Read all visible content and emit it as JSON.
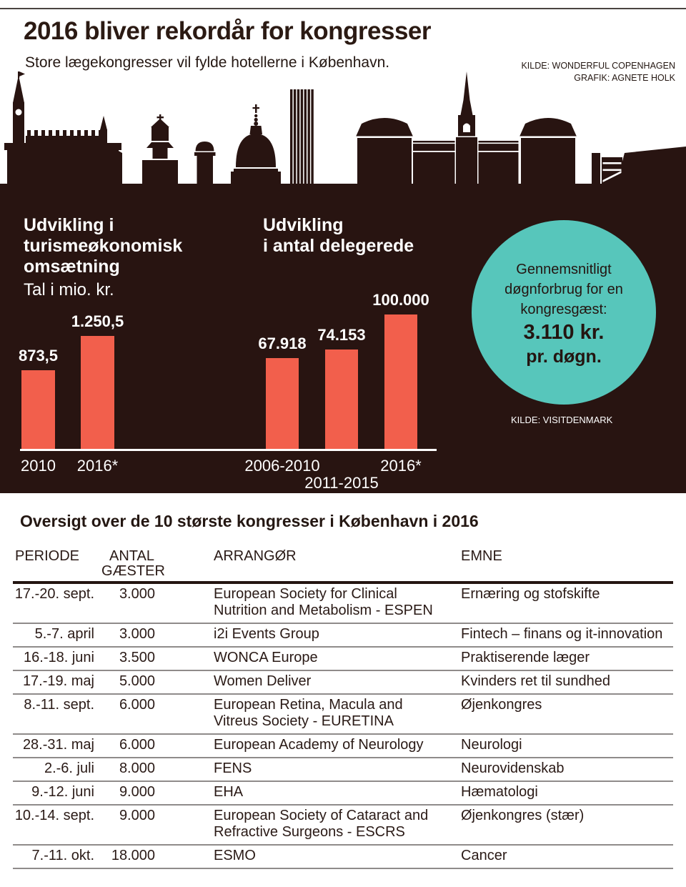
{
  "header": {
    "title": "2016 bliver rekordår for kongresser",
    "subtitle": "Store lægekongresser vil fylde hotellerne i København.",
    "credits": [
      "KILDE: WONDERFUL COPENHAGEN",
      "GRAFIK: AGNETE HOLK"
    ]
  },
  "colors": {
    "panel_bg": "#281411",
    "bar": "#f25f4c",
    "teal_circle": "#57c6bb",
    "title_ink": "#2b1a13",
    "table_rule_gray": "#8f8b8a",
    "table_rule_dark": "#241511",
    "white": "#ffffff"
  },
  "panel": {
    "circle": {
      "line1": "Gennemsnitligt",
      "line2": "døgnforbrug for en",
      "line3": "kongresgæst:",
      "amount": "3.110 kr.",
      "per": "pr. døgn."
    },
    "source": "KILDE: VISITDENMARK"
  },
  "chart_data": [
    {
      "type": "bar",
      "title": "Udvikling i\nturismeøkonomisk\nomsætning",
      "unit_label": "Tal i mio. kr.",
      "categories": [
        "2010",
        "2016*"
      ],
      "values": [
        873.5,
        1250.5
      ],
      "value_labels": [
        "873,5",
        "1.250,5"
      ],
      "xlabel": "",
      "ylabel": "",
      "ylim": [
        0,
        1250.5
      ],
      "bar_color": "#f25f4c",
      "grid": false,
      "legend": "none"
    },
    {
      "type": "bar",
      "title": "Udvikling\ni antal delegerede",
      "unit_label": "",
      "categories": [
        "2006-2010",
        "2011-2015",
        "2016*"
      ],
      "values": [
        67918,
        74153,
        100000
      ],
      "value_labels": [
        "67.918",
        "74.153",
        "100.000"
      ],
      "xlabel": "",
      "ylabel": "",
      "ylim": [
        0,
        100000
      ],
      "bar_color": "#f25f4c",
      "grid": false,
      "legend": "none",
      "staggered_x_labels": true
    },
    {
      "type": "table",
      "title": "Oversigt over de 10 største kongresser i København i 2016",
      "columns": [
        "PERIODE",
        "ANTAL GÆSTER",
        "ARRANGØR",
        "EMNE"
      ],
      "rows": [
        [
          "17.-20. sept.",
          "3.000",
          "European Society for Clinical\nNutrition and Metabolism - ESPEN",
          "Ernæring og stofskifte"
        ],
        [
          "5.-7. april",
          "3.000",
          "i2i Events Group",
          "Fintech – finans og it-innovation"
        ],
        [
          "16.-18. juni",
          "3.500",
          "WONCA Europe",
          "Praktiserende læger"
        ],
        [
          "17.-19. maj",
          "5.000",
          "Women Deliver",
          "Kvinders ret til sundhed"
        ],
        [
          "8.-11. sept.",
          "6.000",
          "European Retina, Macula and\nVitreus Society - EURETINA",
          "Øjenkongres"
        ],
        [
          "28.-31. maj",
          "6.000",
          "European Academy of Neurology",
          "Neurologi"
        ],
        [
          "2.-6. juli",
          "8.000",
          "FENS",
          "Neurovidenskab"
        ],
        [
          "9.-12. juni",
          "9.000",
          "EHA",
          "Hæmatologi"
        ],
        [
          "10.-14. sept.",
          "9.000",
          "European Society of Cataract and\nRefractive Surgeons - ESCRS",
          "Øjenkongres (stær)"
        ],
        [
          "7.-11. okt.",
          "18.000",
          "ESMO",
          "Cancer"
        ]
      ]
    }
  ]
}
